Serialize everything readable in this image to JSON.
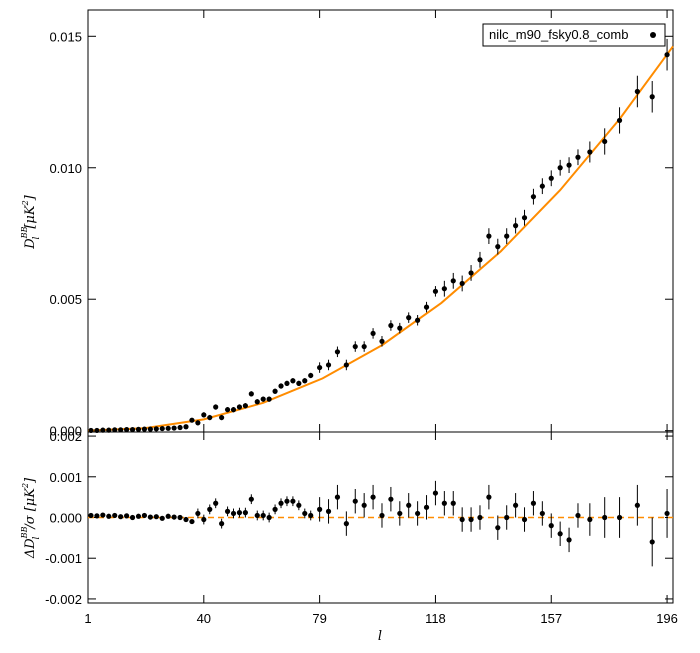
{
  "chart_data": [
    {
      "type": "errorbar",
      "ylabel_parts": [
        "D",
        "BB",
        "l",
        "[μK",
        "2",
        "]"
      ],
      "legend": "upper right",
      "xlim": [
        1,
        198
      ],
      "xticks": [
        1,
        40,
        79,
        118,
        157,
        196
      ],
      "ylim": [
        -5e-05,
        0.016
      ],
      "yticks": [
        {
          "value": 0,
          "label": "0.000"
        },
        {
          "value": 0.005,
          "label": "0.005"
        },
        {
          "value": 0.01,
          "label": "0.010"
        },
        {
          "value": 0.015,
          "label": "0.015"
        }
      ],
      "x": [
        2,
        4,
        6,
        8,
        10,
        12,
        14,
        16,
        18,
        20,
        22,
        24,
        26,
        28,
        30,
        32,
        34,
        36,
        38,
        40,
        42,
        44,
        46,
        48,
        50,
        52,
        54,
        56,
        58,
        60,
        62,
        64,
        66,
        68,
        70,
        72,
        74,
        76,
        79,
        82,
        85,
        88,
        91,
        94,
        97,
        100,
        103,
        106,
        109,
        112,
        115,
        118,
        121,
        124,
        127,
        130,
        133,
        136,
        139,
        142,
        145,
        148,
        151,
        154,
        157,
        160,
        163,
        166,
        170,
        175,
        180,
        186,
        191,
        196
      ],
      "series": [
        {
          "name": "nilc_m90_fsky0.8_comb",
          "color": "#000000",
          "values": [
            1e-05,
            1e-05,
            2e-05,
            2e-05,
            3e-05,
            3e-05,
            4e-05,
            4e-05,
            5e-05,
            6e-05,
            6e-05,
            7e-05,
            8e-05,
            9e-05,
            0.0001,
            0.00012,
            0.00015,
            0.0004,
            0.0003,
            0.0006,
            0.0005,
            0.0009,
            0.0005,
            0.0008,
            0.0008,
            0.0009,
            0.00095,
            0.0014,
            0.0011,
            0.0012,
            0.0012,
            0.0015,
            0.0017,
            0.0018,
            0.0019,
            0.0018,
            0.0019,
            0.0021,
            0.0024,
            0.0025,
            0.003,
            0.0025,
            0.0032,
            0.0032,
            0.0037,
            0.0034,
            0.004,
            0.0039,
            0.0043,
            0.0042,
            0.0047,
            0.0053,
            0.0054,
            0.0057,
            0.0056,
            0.006,
            0.0065,
            0.0074,
            0.007,
            0.0074,
            0.0078,
            0.0081,
            0.0089,
            0.0093,
            0.0096,
            0.01,
            0.0101,
            0.0104,
            0.0106,
            0.011,
            0.0118,
            0.0129,
            0.0127,
            0.0143
          ],
          "errors": [
            2e-05,
            2e-05,
            2e-05,
            2e-05,
            2e-05,
            2e-05,
            2e-05,
            2e-05,
            2e-05,
            2e-05,
            2e-05,
            2e-05,
            2e-05,
            2e-05,
            2e-05,
            2e-05,
            2e-05,
            2e-05,
            0.0001,
            0.0001,
            0.0001,
            0.0001,
            0.0001,
            0.0001,
            0.0001,
            0.0001,
            0.0001,
            0.0001,
            0.0001,
            0.0001,
            0.0001,
            0.0001,
            0.0001,
            0.0001,
            0.0001,
            0.0001,
            0.0001,
            0.0001,
            0.0002,
            0.0002,
            0.0002,
            0.0002,
            0.0002,
            0.0002,
            0.0002,
            0.0002,
            0.0002,
            0.0002,
            0.0002,
            0.0002,
            0.0002,
            0.0002,
            0.0003,
            0.0003,
            0.0003,
            0.0003,
            0.0003,
            0.0003,
            0.0003,
            0.0003,
            0.0003,
            0.0003,
            0.0003,
            0.0003,
            0.0003,
            0.0003,
            0.0003,
            0.0003,
            0.0004,
            0.0005,
            0.0005,
            0.0006,
            0.0006,
            0.0006
          ]
        }
      ],
      "model": {
        "color": "#ff8c00",
        "x": [
          1,
          20,
          40,
          60,
          80,
          100,
          120,
          140,
          160,
          180,
          198
        ],
        "values": [
          0,
          9.4e-05,
          0.00043,
          0.00106,
          0.00199,
          0.00325,
          0.00486,
          0.00682,
          0.00915,
          0.01185,
          0.01462
        ]
      }
    },
    {
      "type": "errorbar",
      "ylabel_parts": [
        "ΔD",
        "BB",
        "l",
        "/σ [μK",
        "2",
        "]"
      ],
      "xlabel": "l",
      "xlim": [
        1,
        198
      ],
      "xticks": [
        1,
        40,
        79,
        118,
        157,
        196
      ],
      "ylim": [
        -0.0021,
        0.0021
      ],
      "yticks": [
        {
          "value": -0.002,
          "label": "-0.002"
        },
        {
          "value": -0.001,
          "label": "-0.001"
        },
        {
          "value": 0,
          "label": "0.000"
        },
        {
          "value": 0.001,
          "label": "0.001"
        },
        {
          "value": 0.002,
          "label": "0.002"
        }
      ],
      "hline": {
        "value": 0,
        "color": "#ff8c00"
      },
      "x": [
        2,
        4,
        6,
        8,
        10,
        12,
        14,
        16,
        18,
        20,
        22,
        24,
        26,
        28,
        30,
        32,
        34,
        36,
        38,
        40,
        42,
        44,
        46,
        48,
        50,
        52,
        54,
        56,
        58,
        60,
        62,
        64,
        66,
        68,
        70,
        72,
        74,
        76,
        79,
        82,
        85,
        88,
        91,
        94,
        97,
        100,
        103,
        106,
        109,
        112,
        115,
        118,
        121,
        124,
        127,
        130,
        133,
        136,
        139,
        142,
        145,
        148,
        151,
        154,
        157,
        160,
        163,
        166,
        170,
        175,
        180,
        186,
        191,
        196
      ],
      "series": [
        {
          "color": "#000000",
          "values": [
            5e-05,
            4e-05,
            6e-05,
            3e-05,
            5e-05,
            2e-05,
            4e-05,
            0,
            3e-05,
            5e-05,
            1e-05,
            2e-05,
            -2e-05,
            3e-05,
            1e-05,
            0,
            -5e-05,
            -0.0001,
            0.0001,
            -5e-05,
            0.0002,
            0.00035,
            -0.00015,
            0.00015,
            0.0001,
            0.00012,
            0.00012,
            0.00045,
            5e-05,
            5e-05,
            0,
            0.0002,
            0.00035,
            0.0004,
            0.0004,
            0.0003,
            0.0001,
            5e-05,
            0.0002,
            0.00015,
            0.0005,
            -0.00015,
            0.0004,
            0.0003,
            0.0005,
            5e-05,
            0.00045,
            0.0001,
            0.0003,
            0.0001,
            0.00025,
            0.0006,
            0.00035,
            0.00035,
            -5e-05,
            -5e-05,
            0,
            0.0005,
            -0.00025,
            0,
            0.0003,
            -5e-05,
            0.00035,
            0.0001,
            -0.0002,
            -0.0004,
            -0.00055,
            5e-05,
            -5e-05,
            0,
            0,
            0.0003,
            -0.0006,
            0.0001
          ],
          "errors": [
            5e-05,
            5e-05,
            5e-05,
            5e-05,
            5e-05,
            5e-05,
            5e-05,
            5e-05,
            5e-05,
            5e-05,
            5e-05,
            5e-05,
            5e-05,
            5e-05,
            5e-05,
            5e-05,
            5e-05,
            5e-05,
            0.00012,
            0.00012,
            0.00012,
            0.00012,
            0.00012,
            0.00012,
            0.00012,
            0.00012,
            0.00012,
            0.00012,
            0.00012,
            0.00012,
            0.00012,
            0.00012,
            0.00012,
            0.00012,
            0.00012,
            0.00012,
            0.00012,
            0.00012,
            0.0003,
            0.0003,
            0.0003,
            0.0003,
            0.0003,
            0.0003,
            0.0003,
            0.0003,
            0.0003,
            0.0003,
            0.0003,
            0.0003,
            0.0003,
            0.0003,
            0.0003,
            0.0003,
            0.0003,
            0.0003,
            0.0003,
            0.0003,
            0.0003,
            0.0003,
            0.0003,
            0.0003,
            0.0003,
            0.0003,
            0.0003,
            0.0003,
            0.0003,
            0.0003,
            0.0004,
            0.0005,
            0.0005,
            0.0005,
            0.0006,
            0.0006
          ]
        }
      ]
    }
  ]
}
